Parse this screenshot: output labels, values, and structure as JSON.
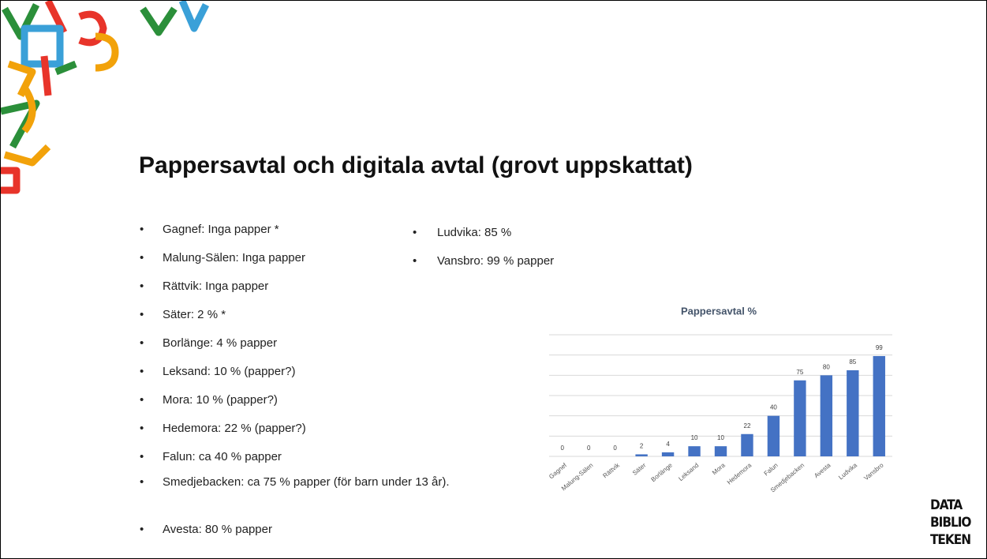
{
  "title": "Pappersavtal och digitala avtal (grovt uppskattat)",
  "bullets_left": [
    "Gagnef: Inga papper *",
    "Malung-Sälen: Inga papper",
    "Rättvik: Inga papper",
    "Säter: 2 % *",
    "Borlänge: 4 % papper",
    "Leksand: 10 % (papper?)",
    "Mora: 10 % (papper?)",
    "Hedemora: 22 % (papper?)",
    "Falun: ca 40 % papper",
    "Smedjebacken: ca 75 % papper (för barn under 13 år).",
    "Avesta: 80 % papper"
  ],
  "bullets_right": [
    "Ludvika: 85 %",
    "Vansbro: 99 % papper"
  ],
  "logo": [
    "DATA",
    "BIBLIO",
    "TEKEN"
  ],
  "chart_data": {
    "type": "bar",
    "title": "Pappersavtal %",
    "categories": [
      "Gagnef",
      "Malung-Sälen",
      "Rättvik",
      "Säter",
      "Borlänge",
      "Leksand",
      "Mora",
      "Hedemora",
      "Falun",
      "Smedjebacken",
      "Avesta",
      "Ludvika",
      "Vansbro"
    ],
    "values": [
      0,
      0,
      0,
      2,
      4,
      10,
      10,
      22,
      40,
      75,
      80,
      85,
      99
    ],
    "color": "#4472c4",
    "ylim": [
      0,
      120
    ],
    "yticks": [
      0,
      20,
      40,
      60,
      80,
      100,
      120
    ],
    "grid": true,
    "tick_labels": false,
    "data_labels": true
  }
}
